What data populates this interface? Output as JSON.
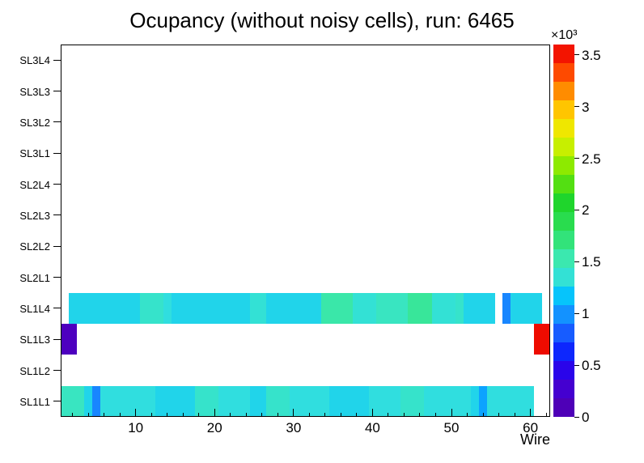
{
  "chart_data": {
    "type": "heatmap",
    "title": "Ocupancy (without noisy cells), run: 6465",
    "xlabel": "Wire",
    "x_range": [
      0.5,
      62.5
    ],
    "x_major_ticks": [
      10,
      20,
      30,
      40,
      50,
      60
    ],
    "x_minor_tick_step": 2,
    "y_labels_top_to_bottom": [
      "SL3L4",
      "SL3L3",
      "SL3L2",
      "SL3L1",
      "SL2L4",
      "SL2L3",
      "SL2L2",
      "SL2L1",
      "SL1L4",
      "SL1L3",
      "SL1L2",
      "SL1L1"
    ],
    "z_axis": {
      "multiplier_label": "×10³",
      "ticks": [
        "0",
        "0.5",
        "1",
        "1.5",
        "2",
        "2.5",
        "3",
        "3.5"
      ],
      "tick_values": [
        0,
        0.5,
        1,
        1.5,
        2,
        2.5,
        3,
        3.5
      ],
      "min": 0,
      "max": 3.6,
      "value_unit_scale": 1000
    },
    "palette_stops": [
      [
        0.0,
        "#5000AA"
      ],
      [
        0.06,
        "#4B00C8"
      ],
      [
        0.12,
        "#2D00E8"
      ],
      [
        0.18,
        "#0A2AFF"
      ],
      [
        0.25,
        "#1E78FF"
      ],
      [
        0.32,
        "#00C0FF"
      ],
      [
        0.36,
        "#30DEE0"
      ],
      [
        0.42,
        "#3CE8B4"
      ],
      [
        0.5,
        "#2EE060"
      ],
      [
        0.58,
        "#1ED428"
      ],
      [
        0.66,
        "#7CE800"
      ],
      [
        0.74,
        "#D8F000"
      ],
      [
        0.8,
        "#FFE000"
      ],
      [
        0.86,
        "#FFA000"
      ],
      [
        0.92,
        "#FF5000"
      ],
      [
        0.97,
        "#F51800"
      ],
      [
        1.0,
        "#E80000"
      ]
    ],
    "segment_format": "[wire_start, wire_end, occupancy_value_in_thousands]",
    "rows": [
      {
        "label": "SL1L4",
        "segments": [
          [
            2,
            10,
            1.25
          ],
          [
            11,
            13,
            1.4
          ],
          [
            14,
            14,
            1.3
          ],
          [
            15,
            24,
            1.25
          ],
          [
            25,
            26,
            1.35
          ],
          [
            27,
            33,
            1.25
          ],
          [
            34,
            37,
            1.55
          ],
          [
            38,
            40,
            1.35
          ],
          [
            41,
            44,
            1.45
          ],
          [
            45,
            47,
            1.6
          ],
          [
            48,
            50,
            1.35
          ],
          [
            51,
            51,
            1.4
          ],
          [
            52,
            55,
            1.25
          ],
          [
            57,
            57,
            0.95
          ],
          [
            58,
            61,
            1.25
          ]
        ]
      },
      {
        "label": "SL1L3",
        "segments": [
          [
            1,
            2,
            0.15
          ],
          [
            61,
            62,
            3.55
          ]
        ]
      },
      {
        "label": "SL1L1",
        "segments": [
          [
            1,
            3,
            1.45
          ],
          [
            4,
            4,
            1.25
          ],
          [
            5,
            5,
            0.95
          ],
          [
            6,
            12,
            1.3
          ],
          [
            13,
            17,
            1.25
          ],
          [
            18,
            20,
            1.4
          ],
          [
            21,
            24,
            1.3
          ],
          [
            25,
            26,
            1.25
          ],
          [
            27,
            29,
            1.4
          ],
          [
            30,
            34,
            1.3
          ],
          [
            35,
            39,
            1.25
          ],
          [
            40,
            43,
            1.3
          ],
          [
            44,
            46,
            1.4
          ],
          [
            47,
            52,
            1.3
          ],
          [
            53,
            53,
            1.25
          ],
          [
            54,
            54,
            1.05
          ],
          [
            55,
            60,
            1.3
          ]
        ]
      }
    ],
    "empty_rows": [
      "SL3L4",
      "SL3L3",
      "SL3L2",
      "SL3L1",
      "SL2L4",
      "SL2L3",
      "SL2L2",
      "SL2L1",
      "SL1L2"
    ]
  }
}
